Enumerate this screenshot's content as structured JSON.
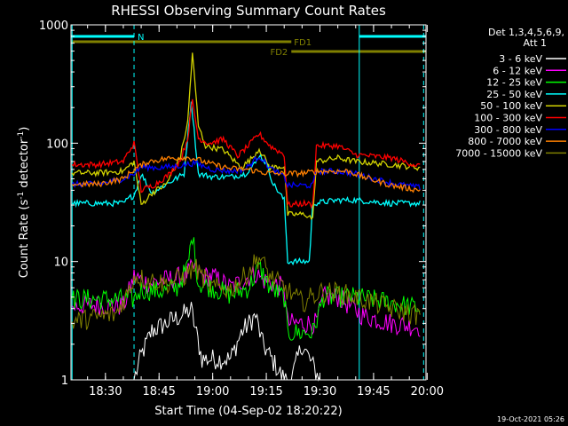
{
  "chart_data": {
    "type": "line",
    "title": "RHESSI Observing Summary Count Rates",
    "xlabel": "Start Time (04-Sep-02 18:20:22)",
    "ylabel": "Count Rate (s",
    "ylabel_sup1": "-1",
    "ylabel_mid": " detector",
    "ylabel_sup2": "-1",
    "ylabel_end": ")",
    "y_scale": "log",
    "ylim": [
      1,
      1000
    ],
    "xlim": [
      "18:20:22",
      "19:59:40"
    ],
    "x_ticks": [
      "18:30",
      "18:45",
      "19:00",
      "19:15",
      "19:30",
      "19:45",
      "20:00"
    ],
    "y_ticks": [
      "1",
      "10",
      "100",
      "1000"
    ],
    "legend_header": [
      "Det 1,3,4,5,6,9,",
      "Att 1"
    ],
    "legend_position": "right",
    "timestamp": "19-Oct-2021 05:26",
    "flags": [
      {
        "label": "N",
        "color": "#00ffff",
        "segments": [
          [
            "18:20:22",
            "18:38:00"
          ],
          [
            "19:41:00",
            "19:59:30"
          ]
        ]
      },
      {
        "label": "FD1",
        "color": "#808000",
        "segments": [
          [
            "18:20:22",
            "19:22:00"
          ]
        ]
      },
      {
        "label": "FD2",
        "color": "#808000",
        "segments": [
          [
            "19:22:00",
            "19:59:30"
          ]
        ]
      }
    ],
    "vertical_lines": [
      {
        "time": "18:20:40",
        "color": "#00ffff",
        "style": "solid"
      },
      {
        "time": "18:38:00",
        "color": "#00ffff",
        "style": "dashed"
      },
      {
        "time": "19:41:00",
        "color": "#00ffff",
        "style": "solid"
      },
      {
        "time": "19:59:00",
        "color": "#00ffff",
        "style": "dashed"
      }
    ],
    "series": [
      {
        "name": "3 - 6 keV",
        "color": "#ffffff",
        "points": [
          [
            "18:38:00",
            1
          ],
          [
            "18:40:00",
            1.6
          ],
          [
            "18:43:00",
            2.6
          ],
          [
            "18:47:00",
            3
          ],
          [
            "18:52:00",
            3.6
          ],
          [
            "18:54:00",
            3.9
          ],
          [
            "18:57:00",
            1.5
          ],
          [
            "19:00:00",
            1.5
          ],
          [
            "19:05:00",
            1.5
          ],
          [
            "19:08:00",
            2.5
          ],
          [
            "19:12:00",
            3.5
          ],
          [
            "19:14:00",
            2
          ],
          [
            "19:20:00",
            1
          ],
          [
            "19:22:00",
            1
          ],
          [
            "19:25:00",
            2
          ],
          [
            "19:30:00",
            1
          ]
        ]
      },
      {
        "name": "6 - 12 keV",
        "color": "#ff00ff",
        "points": [
          [
            "18:20:40",
            4.2
          ],
          [
            "18:28:00",
            4.3
          ],
          [
            "18:35:00",
            4.2
          ],
          [
            "18:37:00",
            6
          ],
          [
            "18:38:00",
            7.5
          ],
          [
            "18:42:00",
            6.5
          ],
          [
            "18:47:00",
            7
          ],
          [
            "18:52:00",
            7.5
          ],
          [
            "18:55:00",
            9
          ],
          [
            "18:57:00",
            7.5
          ],
          [
            "19:00:00",
            7.5
          ],
          [
            "19:05:00",
            6
          ],
          [
            "19:08:00",
            6.8
          ],
          [
            "19:12:00",
            8
          ],
          [
            "19:14:00",
            7
          ],
          [
            "19:20:00",
            6
          ],
          [
            "19:21:00",
            3
          ],
          [
            "19:26:00",
            3
          ],
          [
            "19:29:00",
            3
          ],
          [
            "19:31:00",
            5
          ],
          [
            "19:35:00",
            5
          ],
          [
            "19:42:00",
            3.5
          ],
          [
            "19:50:00",
            3
          ],
          [
            "19:58:00",
            2.8
          ]
        ]
      },
      {
        "name": "12 - 25 keV",
        "color": "#00ff00",
        "points": [
          [
            "18:20:40",
            4.8
          ],
          [
            "18:28:00",
            4.8
          ],
          [
            "18:35:00",
            4.8
          ],
          [
            "18:38:00",
            4.8
          ],
          [
            "18:40:00",
            5.8
          ],
          [
            "18:45:00",
            5.6
          ],
          [
            "18:50:00",
            6
          ],
          [
            "18:53:00",
            9
          ],
          [
            "18:54:20",
            17
          ],
          [
            "18:56:00",
            6.5
          ],
          [
            "19:00:00",
            6
          ],
          [
            "19:05:00",
            5.2
          ],
          [
            "19:10:00",
            6
          ],
          [
            "19:13:00",
            9
          ],
          [
            "19:16:00",
            6
          ],
          [
            "19:20:00",
            5
          ],
          [
            "19:21:00",
            2.5
          ],
          [
            "19:26:00",
            2.5
          ],
          [
            "19:28:00",
            2.5
          ],
          [
            "19:31:00",
            5
          ],
          [
            "19:35:00",
            5
          ],
          [
            "19:40:00",
            5
          ],
          [
            "19:50:00",
            4.5
          ],
          [
            "19:58:00",
            4
          ]
        ]
      },
      {
        "name": "25 - 50 keV",
        "color": "#00ffff",
        "points": [
          [
            "18:20:40",
            31
          ],
          [
            "18:28:00",
            31
          ],
          [
            "18:35:00",
            31
          ],
          [
            "18:37:00",
            35
          ],
          [
            "18:38:00",
            36
          ],
          [
            "18:40:00",
            55
          ],
          [
            "18:43:00",
            38
          ],
          [
            "18:47:00",
            45
          ],
          [
            "18:52:00",
            55
          ],
          [
            "18:54:00",
            230
          ],
          [
            "18:56:00",
            55
          ],
          [
            "19:00:00",
            52
          ],
          [
            "19:05:00",
            52
          ],
          [
            "19:09:00",
            55
          ],
          [
            "19:12:00",
            68
          ],
          [
            "19:13:00",
            80
          ],
          [
            "19:15:00",
            68
          ],
          [
            "19:17:00",
            45
          ],
          [
            "19:20:00",
            33
          ],
          [
            "19:21:00",
            10
          ],
          [
            "19:25:00",
            10
          ],
          [
            "19:27:00",
            10
          ],
          [
            "19:28:00",
            31
          ],
          [
            "19:35:00",
            33
          ],
          [
            "19:40:00",
            33
          ],
          [
            "19:50:00",
            31
          ],
          [
            "19:58:00",
            31
          ]
        ]
      },
      {
        "name": "50 - 100 keV",
        "color": "#d2d200",
        "points": [
          [
            "18:20:40",
            56
          ],
          [
            "18:28:00",
            56
          ],
          [
            "18:35:00",
            58
          ],
          [
            "18:38:00",
            70
          ],
          [
            "18:40:00",
            30
          ],
          [
            "18:43:00",
            38
          ],
          [
            "18:47:00",
            45
          ],
          [
            "18:51:00",
            78
          ],
          [
            "18:53:00",
            150
          ],
          [
            "18:54:20",
            580
          ],
          [
            "18:56:00",
            140
          ],
          [
            "18:58:00",
            95
          ],
          [
            "19:03:00",
            88
          ],
          [
            "19:08:00",
            62
          ],
          [
            "19:11:00",
            75
          ],
          [
            "19:13:00",
            90
          ],
          [
            "19:16:00",
            62
          ],
          [
            "19:20:00",
            64
          ],
          [
            "19:21:00",
            25
          ],
          [
            "19:26:00",
            25
          ],
          [
            "19:28:00",
            23
          ],
          [
            "19:29:00",
            70
          ],
          [
            "19:35:00",
            75
          ],
          [
            "19:40:00",
            70
          ],
          [
            "19:50:00",
            66
          ],
          [
            "19:58:00",
            62
          ]
        ]
      },
      {
        "name": "100 - 300 keV",
        "color": "#ff0000",
        "points": [
          [
            "18:20:40",
            66
          ],
          [
            "18:28:00",
            66
          ],
          [
            "18:35:00",
            70
          ],
          [
            "18:36:00",
            80
          ],
          [
            "18:38:00",
            100
          ],
          [
            "18:40:00",
            40
          ],
          [
            "18:44:00",
            45
          ],
          [
            "18:48:00",
            55
          ],
          [
            "18:51:00",
            72
          ],
          [
            "18:53:00",
            110
          ],
          [
            "18:54:20",
            230
          ],
          [
            "18:56:00",
            110
          ],
          [
            "18:59:00",
            100
          ],
          [
            "19:03:00",
            108
          ],
          [
            "19:07:00",
            78
          ],
          [
            "19:10:00",
            95
          ],
          [
            "19:13:00",
            120
          ],
          [
            "19:16:00",
            95
          ],
          [
            "19:20:00",
            80
          ],
          [
            "19:21:00",
            30
          ],
          [
            "19:26:00",
            31
          ],
          [
            "19:28:00",
            30
          ],
          [
            "19:29:00",
            95
          ],
          [
            "19:35:00",
            95
          ],
          [
            "19:40:00",
            80
          ],
          [
            "19:50:00",
            75
          ],
          [
            "19:58:00",
            64
          ]
        ]
      },
      {
        "name": "300 - 800 keV",
        "color": "#0000ff",
        "points": [
          [
            "18:20:40",
            45
          ],
          [
            "18:28:00",
            45
          ],
          [
            "18:35:00",
            50
          ],
          [
            "18:38:00",
            55
          ],
          [
            "18:40:00",
            63
          ],
          [
            "18:45:00",
            62
          ],
          [
            "18:50:00",
            64
          ],
          [
            "18:55:00",
            68
          ],
          [
            "19:00:00",
            60
          ],
          [
            "19:05:00",
            58
          ],
          [
            "19:09:00",
            60
          ],
          [
            "19:13:00",
            78
          ],
          [
            "19:16:00",
            62
          ],
          [
            "19:20:00",
            52
          ],
          [
            "19:21:00",
            44
          ],
          [
            "19:26:00",
            44
          ],
          [
            "19:28:00",
            44
          ],
          [
            "19:29:00",
            58
          ],
          [
            "19:35:00",
            58
          ],
          [
            "19:40:00",
            55
          ],
          [
            "19:50:00",
            46
          ],
          [
            "19:58:00",
            42
          ]
        ]
      },
      {
        "name": "800 - 7000 keV",
        "color": "#ff8000",
        "points": [
          [
            "18:20:40",
            45
          ],
          [
            "18:28:00",
            45
          ],
          [
            "18:35:00",
            50
          ],
          [
            "18:38:00",
            60
          ],
          [
            "18:42:00",
            70
          ],
          [
            "18:47:00",
            74
          ],
          [
            "18:52:00",
            76
          ],
          [
            "18:55:00",
            74
          ],
          [
            "19:00:00",
            66
          ],
          [
            "19:05:00",
            61
          ],
          [
            "19:10:00",
            60
          ],
          [
            "19:15:00",
            56
          ],
          [
            "19:20:00",
            55
          ],
          [
            "19:26:00",
            56
          ],
          [
            "19:30:00",
            58
          ],
          [
            "19:38:00",
            58
          ],
          [
            "19:42:00",
            52
          ],
          [
            "19:50:00",
            44
          ],
          [
            "19:58:00",
            40
          ]
        ]
      },
      {
        "name": "7000 - 15000 keV",
        "color": "#808000",
        "points": [
          [
            "18:20:40",
            3.1
          ],
          [
            "18:28:00",
            3.4
          ],
          [
            "18:33:00",
            3.6
          ],
          [
            "18:37:00",
            6
          ],
          [
            "18:38:00",
            7.5
          ],
          [
            "18:42:00",
            7
          ],
          [
            "18:47:00",
            6.5
          ],
          [
            "18:52:00",
            7.5
          ],
          [
            "18:55:00",
            9
          ],
          [
            "18:57:00",
            7.5
          ],
          [
            "19:00:00",
            6
          ],
          [
            "19:05:00",
            5.8
          ],
          [
            "19:09:00",
            7.5
          ],
          [
            "19:13:00",
            11
          ],
          [
            "19:16:00",
            7.5
          ],
          [
            "19:20:00",
            6
          ],
          [
            "19:25:00",
            4.5
          ],
          [
            "19:30:00",
            5.5
          ],
          [
            "19:35:00",
            5.5
          ],
          [
            "19:40:00",
            5
          ],
          [
            "19:45:00",
            4.5
          ],
          [
            "19:50:00",
            4
          ],
          [
            "19:58:00",
            3.5
          ]
        ]
      }
    ]
  }
}
